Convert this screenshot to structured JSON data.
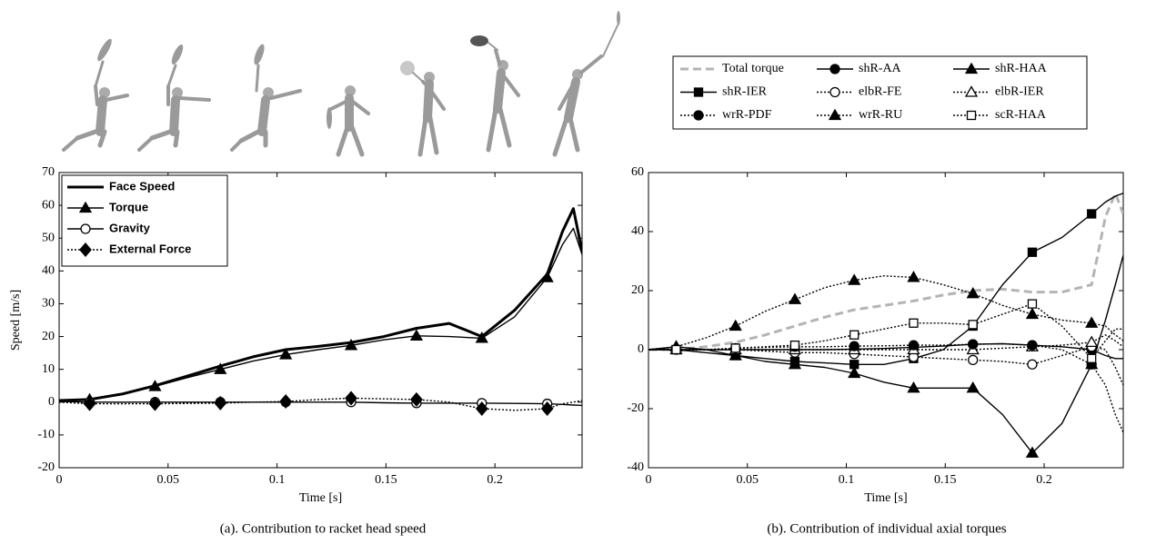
{
  "chart_data": [
    {
      "type": "line",
      "caption": "(a). Contribution to racket head speed",
      "xlabel": "Time [s]",
      "ylabel": "Speed [m/s]",
      "x": [
        0,
        0.014,
        0.029,
        0.044,
        0.059,
        0.074,
        0.089,
        0.104,
        0.119,
        0.134,
        0.149,
        0.164,
        0.179,
        0.194,
        0.209,
        0.224,
        0.231,
        0.236,
        0.24
      ],
      "xlim": [
        0,
        0.24
      ],
      "xticks": [
        0,
        0.05,
        0.1,
        0.15,
        0.2
      ],
      "ylim": [
        -20,
        70
      ],
      "yticks": [
        -20,
        -10,
        0,
        10,
        20,
        30,
        40,
        50,
        60,
        70
      ],
      "legend": "upper left",
      "legend_columns": 1,
      "marker_every": 2,
      "marker_count": 8,
      "series": [
        {
          "name": "Face Speed",
          "color": "#000000",
          "style": "solid",
          "width": 3,
          "marker": "none",
          "values": [
            0.5,
            0.8,
            2.5,
            5,
            8,
            11,
            13.8,
            16,
            17,
            18.2,
            20,
            22.5,
            24,
            20,
            28,
            39,
            52,
            59,
            46
          ]
        },
        {
          "name": "Torque",
          "color": "#000000",
          "style": "solid",
          "width": 1.4,
          "marker": "triangle-filled",
          "values": [
            0.5,
            0.8,
            2.3,
            4.8,
            7.5,
            10,
            12.5,
            14.5,
            16,
            17.3,
            19,
            20.2,
            20,
            19.5,
            26,
            38,
            48,
            53,
            45
          ]
        },
        {
          "name": "Gravity",
          "color": "#000000",
          "style": "solid",
          "width": 1.4,
          "marker": "circle-open",
          "values": [
            0.2,
            0,
            0,
            0,
            0,
            0,
            0,
            0,
            0,
            0,
            -0.2,
            -0.3,
            -0.3,
            -0.3,
            -0.4,
            -0.5,
            -0.7,
            -0.9,
            -1
          ]
        },
        {
          "name": "External Force",
          "color": "#000000",
          "style": "dotted",
          "width": 1.4,
          "marker": "diamond-filled",
          "values": [
            0,
            -0.5,
            -0.5,
            -0.5,
            -0.4,
            -0.3,
            0,
            0.2,
            0.8,
            1.2,
            1,
            0.8,
            0,
            -2,
            -2.5,
            -2,
            -0.5,
            0,
            0.5
          ]
        }
      ]
    },
    {
      "type": "line",
      "caption": "(b). Contribution of individual axial torques",
      "xlabel": "Time [s]",
      "x": [
        0,
        0.014,
        0.029,
        0.044,
        0.059,
        0.074,
        0.089,
        0.104,
        0.119,
        0.134,
        0.149,
        0.164,
        0.179,
        0.194,
        0.209,
        0.224,
        0.231,
        0.236,
        0.24
      ],
      "xlim": [
        0,
        0.24
      ],
      "xticks": [
        0,
        0.05,
        0.1,
        0.15,
        0.2
      ],
      "ylim": [
        -40,
        60
      ],
      "yticks": [
        -40,
        -20,
        0,
        20,
        40,
        60
      ],
      "legend": "above",
      "legend_columns": 3,
      "marker_every": 2,
      "marker_count": 8,
      "series": [
        {
          "name": "Total torque",
          "color": "#b4b4b4",
          "style": "dashed",
          "width": 3,
          "marker": "none",
          "values": [
            0,
            0,
            1,
            2.5,
            5,
            8,
            11,
            13.5,
            15,
            16.5,
            18.5,
            20,
            20.5,
            19.5,
            19.5,
            22,
            45,
            53,
            46
          ]
        },
        {
          "name": "shR-AA",
          "color": "#000000",
          "style": "solid",
          "width": 1.4,
          "marker": "circle-filled",
          "values": [
            0,
            0,
            0,
            0,
            0,
            0,
            0,
            0.2,
            0.4,
            0.8,
            1.2,
            1.8,
            2,
            1.5,
            1,
            0,
            -2,
            -3,
            -3
          ]
        },
        {
          "name": "shR-HAA",
          "color": "#000000",
          "style": "solid",
          "width": 1.4,
          "marker": "triangle-filled",
          "values": [
            0,
            1,
            0,
            -2,
            -4,
            -5,
            -6,
            -8,
            -11,
            -13,
            -13,
            -13,
            -22,
            -35,
            -25,
            -5,
            10,
            22,
            32
          ]
        },
        {
          "name": "shR-IER",
          "color": "#000000",
          "style": "solid",
          "width": 1.4,
          "marker": "square-filled",
          "values": [
            0,
            0,
            -1,
            -2,
            -3,
            -4,
            -4.5,
            -5,
            -5,
            -3,
            0,
            8,
            22,
            33,
            38,
            46,
            50,
            52,
            53
          ]
        },
        {
          "name": "elbR-FE",
          "color": "#000000",
          "style": "dotted",
          "width": 1.4,
          "marker": "circle-open",
          "values": [
            0,
            0,
            0,
            0,
            -0.5,
            -1,
            -1,
            -1.5,
            -2,
            -2.5,
            -3,
            -3.5,
            -4,
            -5,
            -2,
            1,
            0,
            -6,
            -12
          ]
        },
        {
          "name": "elbR-IER",
          "color": "#000000",
          "style": "dotted",
          "width": 1.4,
          "marker": "triangle-open",
          "values": [
            0,
            0,
            0,
            0,
            0,
            0,
            0,
            0,
            0,
            0,
            0,
            0,
            0.5,
            1,
            1.5,
            2.5,
            5,
            3,
            1
          ]
        },
        {
          "name": "wrR-PDF",
          "color": "#000000",
          "style": "dotted",
          "width": 1.4,
          "marker": "circle-filled",
          "values": [
            0,
            0,
            0,
            0.5,
            0.8,
            1,
            1,
            1.2,
            1.3,
            1.5,
            1.5,
            1.8,
            2,
            1.5,
            0,
            -5,
            -12,
            -22,
            -28
          ]
        },
        {
          "name": "wrR-RU",
          "color": "#000000",
          "style": "dotted",
          "width": 1.4,
          "marker": "triangle-filled",
          "values": [
            0,
            1,
            4,
            8,
            13,
            17,
            21,
            23.5,
            25,
            24.5,
            22,
            19,
            15,
            12,
            10,
            9,
            8,
            5,
            3
          ]
        },
        {
          "name": "scR-HAA",
          "color": "#000000",
          "style": "dotted",
          "width": 1.4,
          "marker": "square-open",
          "values": [
            0,
            0,
            0,
            0.5,
            1,
            1.5,
            3,
            5,
            7,
            9,
            9,
            8.5,
            12,
            15.5,
            8,
            -3,
            3,
            7,
            7
          ]
        }
      ]
    }
  ]
}
